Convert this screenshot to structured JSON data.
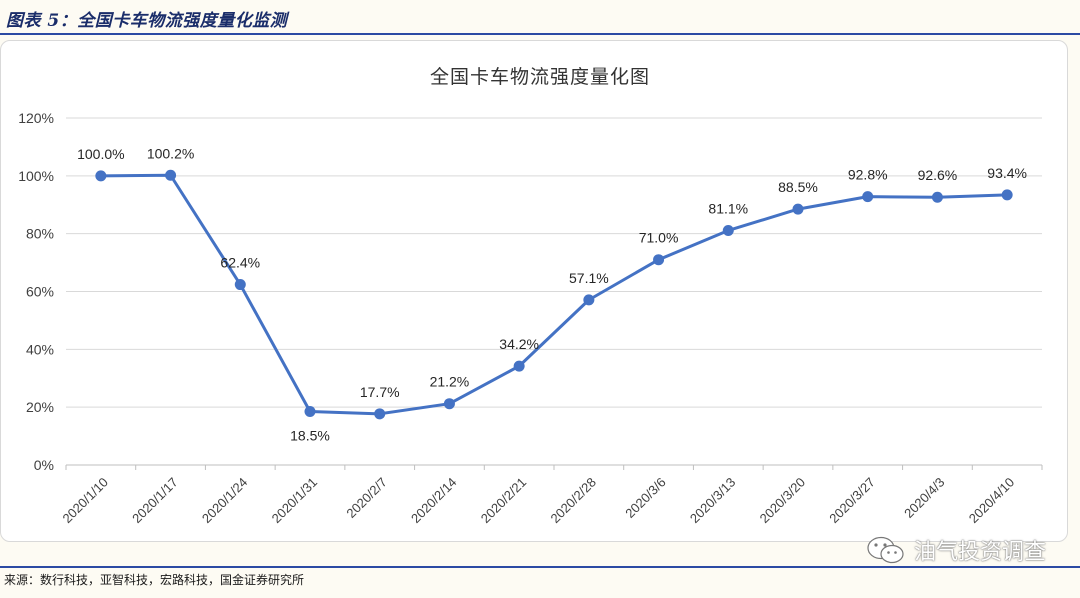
{
  "header": {
    "title": "图表 5：全国卡车物流强度量化监测"
  },
  "source": {
    "text": "来源：数行科技，亚智科技，宏路科技，国金证券研究所"
  },
  "watermark": {
    "text": "油气投资调查",
    "icon": "wechat-icon"
  },
  "colors": {
    "series": "#4472c4",
    "rule": "#2c4aa3",
    "grid": "#d9d9d9",
    "title": "#1a2d6a"
  },
  "chart_data": {
    "type": "line",
    "title": "全国卡车物流强度量化图",
    "xlabel": "",
    "ylabel": "",
    "ylim": [
      0,
      120
    ],
    "yticks": [
      "0%",
      "20%",
      "40%",
      "60%",
      "80%",
      "100%",
      "120%"
    ],
    "grid": true,
    "categories": [
      "2020/1/10",
      "2020/1/17",
      "2020/1/24",
      "2020/1/31",
      "2020/2/7",
      "2020/2/14",
      "2020/2/21",
      "2020/2/28",
      "2020/3/6",
      "2020/3/13",
      "2020/3/20",
      "2020/3/27",
      "2020/4/3",
      "2020/4/10"
    ],
    "series": [
      {
        "values": [
          100.0,
          100.2,
          62.4,
          18.5,
          17.7,
          21.2,
          34.2,
          57.1,
          71.0,
          81.1,
          88.5,
          92.8,
          92.6,
          93.4
        ],
        "labels": [
          "100.0%",
          "100.2%",
          "62.4%",
          "18.5%",
          "17.7%",
          "21.2%",
          "34.2%",
          "57.1%",
          "71.0%",
          "81.1%",
          "88.5%",
          "92.8%",
          "92.6%",
          "93.4%"
        ]
      }
    ]
  }
}
